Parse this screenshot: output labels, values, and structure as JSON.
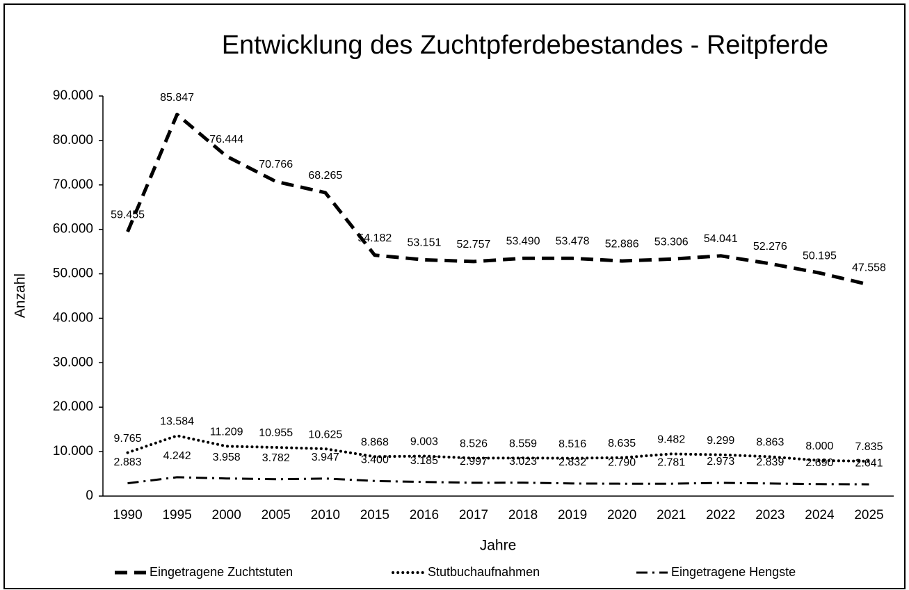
{
  "chart_data": {
    "type": "line",
    "title": "Entwicklung des Zuchtpferdebestandes - Reitpferde",
    "x_label": "Jahre",
    "y_label": "Anzahl",
    "categories": [
      "1990",
      "1995",
      "2000",
      "2005",
      "2010",
      "2015",
      "2016",
      "2017",
      "2018",
      "2019",
      "2020",
      "2021",
      "2022",
      "2023",
      "2024",
      "2025"
    ],
    "ylim": [
      0,
      90000
    ],
    "yticks": [
      0,
      {
        "value": 10000,
        "label": "10.000"
      },
      {
        "value": 20000,
        "label": "20.000"
      },
      {
        "value": 30000,
        "label": "30.000"
      },
      {
        "value": 40000,
        "label": "40.000"
      },
      {
        "value": 50000,
        "label": "50.000"
      },
      {
        "value": 60000,
        "label": "60.000"
      },
      {
        "value": 70000,
        "label": "70.000"
      },
      {
        "value": 80000,
        "label": "80.000"
      },
      {
        "value": 90000,
        "label": "90.000"
      }
    ],
    "legend": "bottom",
    "series": [
      {
        "name": "Eingetragene Zuchtstuten",
        "color": "#000000",
        "style": "dashed",
        "values": [
          59455,
          85847,
          76444,
          70766,
          68265,
          54182,
          53151,
          52757,
          53490,
          53478,
          52886,
          53306,
          54041,
          52276,
          50195,
          47558
        ],
        "value_labels": [
          "59.455",
          "85.847",
          "76.444",
          "70.766",
          "68.265",
          "54.182",
          "53.151",
          "52.757",
          "53.490",
          "53.478",
          "52.886",
          "53.306",
          "54.041",
          "52.276",
          "50.195",
          "47.558"
        ]
      },
      {
        "name": "Stutbuchaufnahmen",
        "color": "#000000",
        "style": "dotted",
        "values": [
          9765,
          13584,
          11209,
          10955,
          10625,
          8868,
          9003,
          8526,
          8559,
          8516,
          8635,
          9482,
          9299,
          8863,
          8000,
          7835
        ],
        "value_labels": [
          "9.765",
          "13.584",
          "11.209",
          "10.955",
          "10.625",
          "8.868",
          "9.003",
          "8.526",
          "8.559",
          "8.516",
          "8.635",
          "9.482",
          "9.299",
          "8.863",
          "8.000",
          "7.835"
        ]
      },
      {
        "name": "Eingetragene Hengste",
        "color": "#000000",
        "style": "dashdot",
        "values": [
          2883,
          4242,
          3958,
          3782,
          3947,
          3400,
          3185,
          2997,
          3023,
          2832,
          2790,
          2781,
          2973,
          2839,
          2690,
          2641
        ],
        "value_labels": [
          "2.883",
          "4.242",
          "3.958",
          "3.782",
          "3.947",
          "3.400",
          "3.185",
          "2.997",
          "3.023",
          "2.832",
          "2.790",
          "2.781",
          "2.973",
          "2.839",
          "2.690",
          "2.641"
        ]
      }
    ]
  }
}
